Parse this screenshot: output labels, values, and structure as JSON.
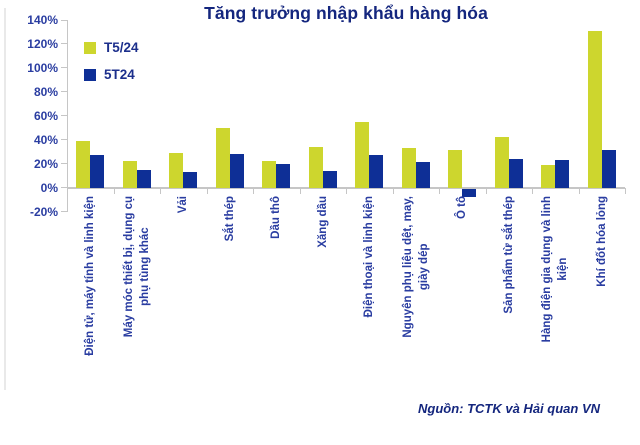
{
  "title": {
    "text": "Tăng trưởng nhập khẩu hàng hóa"
  },
  "source": {
    "text": "Nguồn: TCTK và Hải quan VN"
  },
  "colors": {
    "series_t5_24": "#cdd62e",
    "series_5t24": "#0e2f96",
    "title_navy": "#14267e",
    "label_blue": "#2a3da1",
    "axis_gray": "#c6c6c6"
  },
  "chart_data": {
    "type": "bar",
    "title": "Tăng trưởng nhập khẩu hàng hóa",
    "xlabel": "",
    "ylabel": "",
    "ylim": [
      -20,
      140
    ],
    "ytick_step": 20,
    "ytick_labels": [
      "140%",
      "120%",
      "100%",
      "80%",
      "60%",
      "40%",
      "20%",
      "0%",
      "-20%"
    ],
    "grid": false,
    "legend_position": "top-left",
    "categories": [
      "Điện tử, máy tính và linh kiện",
      "Máy móc thiết bị, dụng cụ\nphụ tùng khác",
      "Vải",
      "Sắt thép",
      "Dầu thô",
      "Xăng dầu",
      "Điện thoại và linh kiện",
      "Nguyên phụ liệu dệt, may,\ngiày dép",
      "Ô tô",
      "Sản phẩm từ sắt thép",
      "Hàng điện gia dụng và linh\nkiện",
      "Khí đốt hóa lỏng"
    ],
    "series": [
      {
        "name": "T5/24",
        "color": "#cdd62e",
        "values": [
          39,
          22,
          29,
          50,
          22,
          34,
          55,
          33,
          31,
          42,
          19,
          131
        ]
      },
      {
        "name": "5T24",
        "color": "#0e2f96",
        "values": [
          27,
          15,
          13,
          28,
          20,
          14,
          27,
          21,
          -7,
          24,
          23,
          31
        ]
      }
    ]
  }
}
